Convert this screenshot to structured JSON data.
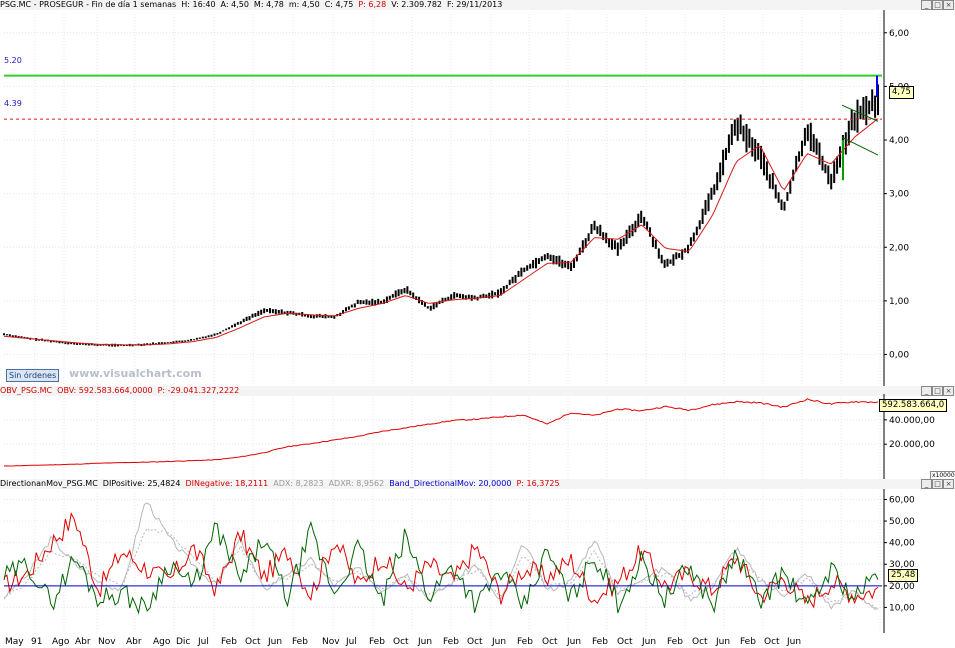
{
  "panels": {
    "price": {
      "header": [
        {
          "text": "PSG.MC - PROSEGUR - Fin de día 1 semanas",
          "tone": "blk"
        },
        {
          "text": "H: 16:40",
          "tone": "blk"
        },
        {
          "text": "A: 4,50",
          "tone": "blk"
        },
        {
          "text": "M: 4,78",
          "tone": "blk"
        },
        {
          "text": "m: 4,50",
          "tone": "blk"
        },
        {
          "text": "C: 4,75",
          "tone": "blk"
        },
        {
          "text": "P: 6,28",
          "tone": "red"
        },
        {
          "text": "V: 2.309.782",
          "tone": "blk"
        },
        {
          "text": "F: 29/11/2013",
          "tone": "blk"
        }
      ],
      "level_upper": "5.20",
      "level_lower": "4.39",
      "last_value": "4,75",
      "orders_tag": "Sin órdenes",
      "watermark": "www.visualchart.com"
    },
    "obv": {
      "header": [
        {
          "text": "OBV_PSG.MC",
          "tone": "red"
        },
        {
          "text": "OBV: 592.583.664,0000",
          "tone": "red"
        },
        {
          "text": "P: -29.041.327,2222",
          "tone": "red"
        }
      ],
      "last_value": "592.583.664,0",
      "unit": "x10000"
    },
    "dmi": {
      "header": [
        {
          "text": "DirectionanMov_PSG.MC",
          "tone": "blk"
        },
        {
          "text": "DIPositive: 25,4824",
          "tone": "blk"
        },
        {
          "text": "DINegative: 18,2111",
          "tone": "red"
        },
        {
          "text": "ADX: 8,2823",
          "tone": "gry"
        },
        {
          "text": "ADXR: 8,9562",
          "tone": "gry"
        },
        {
          "text": "Band_DirectionalMov: 20,0000",
          "tone": "blu"
        },
        {
          "text": "P: 16,3725",
          "tone": "red"
        }
      ],
      "last_value": "25,48"
    }
  },
  "window_buttons": [
    "_",
    "□",
    "×"
  ],
  "month_labels": [
    "May",
    "91",
    "Ago",
    "Abr",
    "Nov",
    "Abr",
    "Ago",
    "Dic",
    "Jul",
    "Feb",
    "Oct",
    "Jun",
    "Feb",
    "Nov",
    "Jul",
    "Feb",
    "Oct",
    "Jun",
    "Feb",
    "Oct",
    "Jun",
    "Feb",
    "Oct",
    "Jun",
    "Feb",
    "Oct",
    "Jun",
    "Feb",
    "Oct",
    "Jun",
    "Feb",
    "Oct",
    "Jun"
  ],
  "colors": {
    "price_bars": "#000000",
    "moving_average": "#d81818",
    "resistance_line": "#33cc33",
    "support_line": "#d81818",
    "obv_line": "#e00000",
    "di_positive": "#006400",
    "di_negative": "#e00000",
    "adx": "#b8b8b8",
    "band": "#0000c8"
  },
  "chart_data": [
    {
      "type": "line",
      "name": "PSG.MC weekly price",
      "xlabel": "",
      "ylabel": "",
      "ylim": [
        -0.55,
        6.35
      ],
      "yticks": [
        "0,00",
        "1,00",
        "2,00",
        "3,00",
        "4,00",
        "5,00",
        "6,00"
      ],
      "ytick_values": [
        0,
        1,
        2,
        3,
        4,
        5,
        6
      ],
      "x": [
        "May 1990",
        "Jan 1991",
        "Aug 1991",
        "Apr 1992",
        "Nov 1992",
        "Apr 1993",
        "Aug 1993",
        "Dec 1993",
        "Jul 1994",
        "Feb 1995",
        "Oct 1995",
        "Jun 1996",
        "Feb 1997",
        "Nov 1997",
        "Jul 1998",
        "Feb 1999",
        "Oct 1999",
        "Jun 2000",
        "Feb 2001",
        "Oct 2001",
        "Jun 2002",
        "Feb 2003",
        "Oct 2003",
        "Jun 2004",
        "Feb 2005",
        "Oct 2005",
        "Jun 2006",
        "Feb 2007",
        "Oct 2007",
        "Jun 2008",
        "Feb 2009",
        "Oct 2009",
        "Jun 2010",
        "Feb 2011",
        "Oct 2011",
        "Jun 2012",
        "Feb 2013",
        "Oct 2013"
      ],
      "series": [
        {
          "values": [
            0.38,
            0.3,
            0.25,
            0.2,
            0.18,
            0.17,
            0.19,
            0.22,
            0.27,
            0.38,
            0.6,
            0.82,
            0.78,
            0.72,
            0.7,
            0.97,
            0.98,
            1.22,
            0.86,
            1.1,
            1.05,
            1.15,
            1.58,
            1.85,
            1.62,
            2.4,
            1.95,
            2.6,
            1.65,
            2.0,
            3.0,
            4.3,
            3.72,
            2.7,
            4.22,
            3.25,
            4.4,
            4.75
          ]
        },
        {
          "values": [
            0.34,
            0.3,
            0.26,
            0.22,
            0.19,
            0.18,
            0.18,
            0.2,
            0.24,
            0.32,
            0.5,
            0.7,
            0.77,
            0.74,
            0.72,
            0.86,
            0.95,
            1.1,
            0.95,
            1.02,
            1.05,
            1.1,
            1.4,
            1.7,
            1.72,
            2.18,
            2.15,
            2.42,
            1.98,
            1.92,
            2.6,
            3.6,
            3.9,
            3.05,
            3.75,
            3.55,
            4.05,
            4.4
          ]
        }
      ],
      "levels": [
        5.2,
        4.39
      ]
    },
    {
      "type": "line",
      "name": "OBV_PSG.MC",
      "xlabel": "",
      "ylabel": "",
      "ylim": [
        -7000,
        58000
      ],
      "yticks": [
        "20.000,00",
        "40.000,00"
      ],
      "ytick_values": [
        20000,
        40000
      ],
      "series": [
        {
          "values": [
            2000,
            2500,
            3000,
            3500,
            4300,
            4800,
            5200,
            5800,
            6500,
            7200,
            9500,
            13000,
            18000,
            20500,
            23500,
            26500,
            30500,
            33500,
            36500,
            39500,
            40500,
            42500,
            44000,
            36500,
            46000,
            43500,
            49000,
            47500,
            51000,
            48000,
            52500,
            55000,
            54000,
            50500,
            57000,
            53000,
            55000,
            54500
          ]
        }
      ]
    },
    {
      "type": "line",
      "name": "DirectionanMov_PSG.MC",
      "xlabel": "",
      "ylabel": "",
      "ylim": [
        0,
        63
      ],
      "yticks": [
        "10,00",
        "20,00",
        "30,00",
        "40,00",
        "50,00",
        "60,00"
      ],
      "ytick_values": [
        10,
        20,
        30,
        40,
        50,
        60
      ],
      "series": [
        {
          "values": [
            24,
            30,
            12,
            33,
            14,
            17,
            9,
            31,
            19,
            47,
            22,
            42,
            14,
            45,
            16,
            38,
            12,
            43,
            15,
            30,
            11,
            27,
            10,
            36,
            14,
            34,
            12,
            32,
            14,
            29,
            11,
            35,
            13,
            26,
            9,
            28,
            14,
            25.48
          ]
        },
        {
          "values": [
            20,
            26,
            40,
            52,
            18,
            36,
            28,
            22,
            38,
            18,
            44,
            24,
            36,
            16,
            42,
            20,
            34,
            18,
            30,
            22,
            38,
            16,
            28,
            24,
            32,
            14,
            22,
            36,
            20,
            26,
            18,
            34,
            15,
            24,
            12,
            22,
            16,
            18.21
          ]
        },
        {
          "values": [
            15,
            25,
            42,
            30,
            22,
            18,
            60,
            42,
            30,
            20,
            42,
            18,
            26,
            32,
            20,
            28,
            18,
            26,
            14,
            22,
            30,
            12,
            40,
            18,
            22,
            42,
            16,
            24,
            28,
            14,
            20,
            38,
            22,
            16,
            26,
            10,
            18,
            8.28
          ]
        },
        {
          "values": [
            14,
            22,
            36,
            32,
            24,
            20,
            46,
            45,
            33,
            22,
            38,
            20,
            24,
            30,
            22,
            26,
            19,
            24,
            16,
            21,
            28,
            14,
            34,
            20,
            21,
            36,
            18,
            22,
            26,
            16,
            20,
            33,
            23,
            18,
            23,
            12,
            17,
            8.96
          ]
        },
        {
          "values": [
            20,
            20,
            20,
            20,
            20,
            20,
            20,
            20,
            20,
            20,
            20,
            20,
            20,
            20,
            20,
            20,
            20,
            20,
            20,
            20,
            20,
            20,
            20,
            20,
            20,
            20,
            20,
            20,
            20,
            20,
            20,
            20,
            20,
            20,
            20,
            20,
            20,
            20
          ]
        }
      ]
    }
  ]
}
